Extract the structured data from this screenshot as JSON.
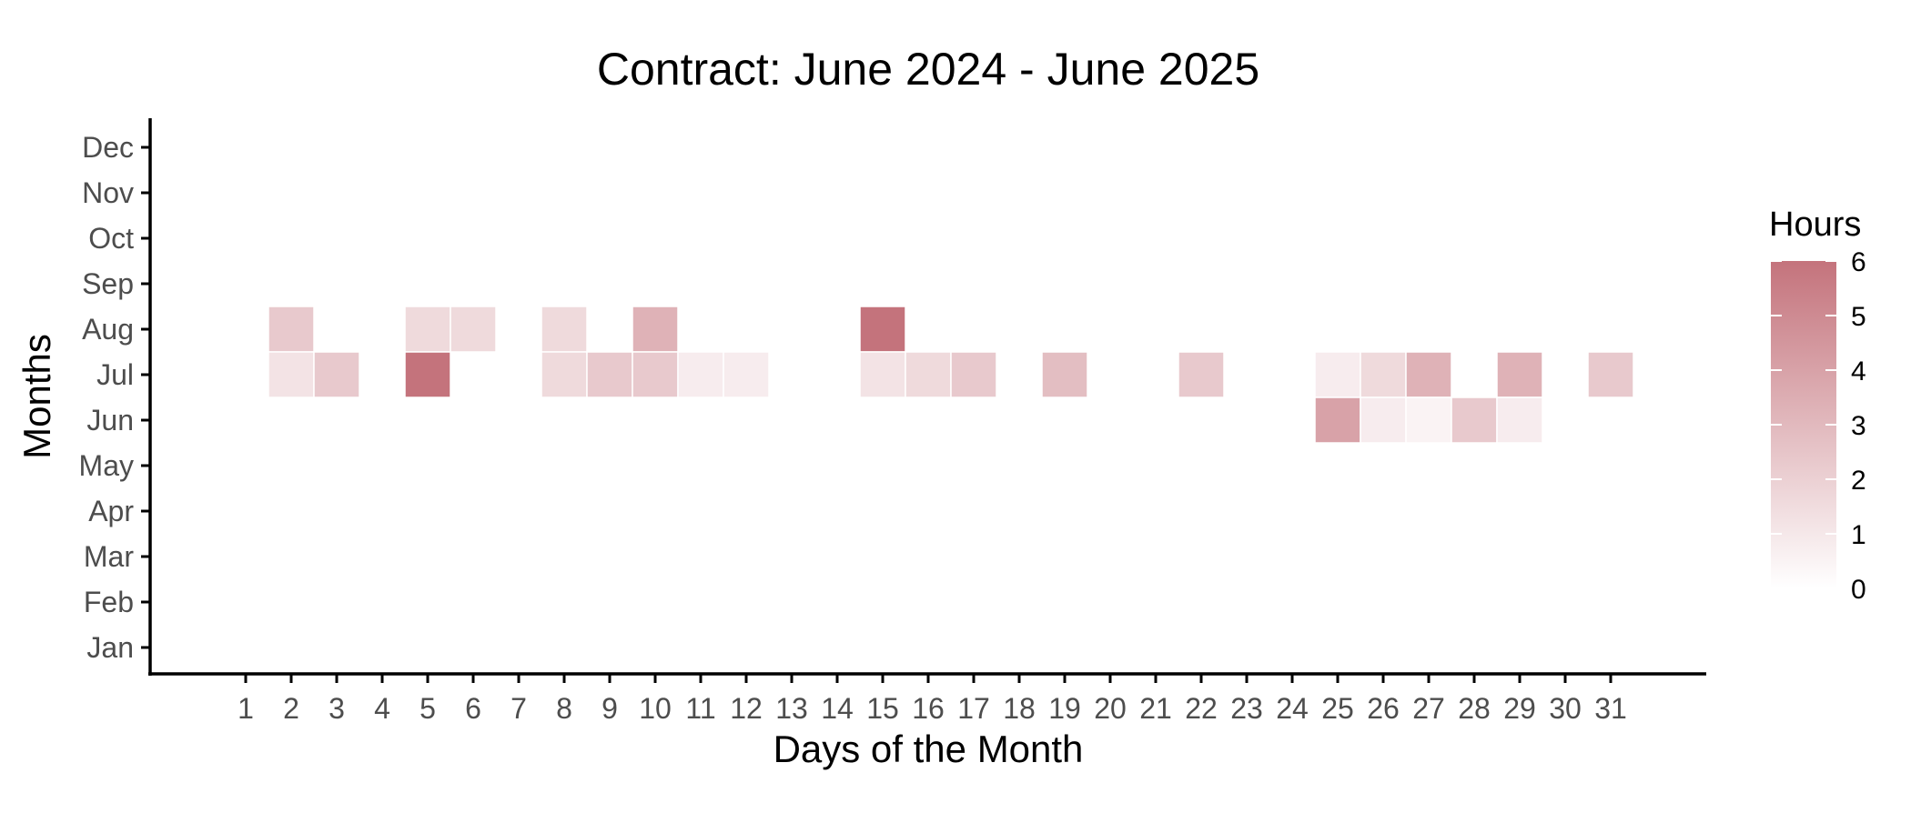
{
  "chart_data": {
    "type": "heatmap",
    "title": "Contract: June 2024 - June 2025",
    "xlabel": "Days of the Month",
    "ylabel": "Months",
    "x_categories": [
      "1",
      "2",
      "3",
      "4",
      "5",
      "6",
      "7",
      "8",
      "9",
      "10",
      "11",
      "12",
      "13",
      "14",
      "15",
      "16",
      "17",
      "18",
      "19",
      "20",
      "21",
      "22",
      "23",
      "24",
      "25",
      "26",
      "27",
      "28",
      "29",
      "30",
      "31"
    ],
    "y_categories": [
      "Jan",
      "Feb",
      "Mar",
      "Apr",
      "May",
      "Jun",
      "Jul",
      "Aug",
      "Sep",
      "Oct",
      "Nov",
      "Dec"
    ],
    "legend": {
      "title": "Hours",
      "placement": "right",
      "range": [
        0,
        6
      ],
      "ticks": [
        "0",
        "1",
        "2",
        "3",
        "4",
        "5",
        "6"
      ],
      "low_color": "#ffffff",
      "high_color": "#c4737c"
    },
    "cells": [
      {
        "month": "Aug",
        "day": "2",
        "hours": 2.3
      },
      {
        "month": "Aug",
        "day": "5",
        "hours": 1.6
      },
      {
        "month": "Aug",
        "day": "6",
        "hours": 1.6
      },
      {
        "month": "Aug",
        "day": "8",
        "hours": 1.6
      },
      {
        "month": "Aug",
        "day": "10",
        "hours": 3.3
      },
      {
        "month": "Aug",
        "day": "15",
        "hours": 6
      },
      {
        "month": "Jul",
        "day": "2",
        "hours": 1.2
      },
      {
        "month": "Jul",
        "day": "3",
        "hours": 2.3
      },
      {
        "month": "Jul",
        "day": "5",
        "hours": 6
      },
      {
        "month": "Jul",
        "day": "8",
        "hours": 1.6
      },
      {
        "month": "Jul",
        "day": "9",
        "hours": 2.3
      },
      {
        "month": "Jul",
        "day": "10",
        "hours": 2.3
      },
      {
        "month": "Jul",
        "day": "11",
        "hours": 0.8
      },
      {
        "month": "Jul",
        "day": "12",
        "hours": 0.8
      },
      {
        "month": "Jul",
        "day": "15",
        "hours": 1.2
      },
      {
        "month": "Jul",
        "day": "16",
        "hours": 1.6
      },
      {
        "month": "Jul",
        "day": "17",
        "hours": 2.3
      },
      {
        "month": "Jul",
        "day": "19",
        "hours": 2.8
      },
      {
        "month": "Jul",
        "day": "22",
        "hours": 2.3
      },
      {
        "month": "Jul",
        "day": "25",
        "hours": 0.8
      },
      {
        "month": "Jul",
        "day": "26",
        "hours": 1.6
      },
      {
        "month": "Jul",
        "day": "27",
        "hours": 3.3
      },
      {
        "month": "Jul",
        "day": "29",
        "hours": 3.3
      },
      {
        "month": "Jul",
        "day": "31",
        "hours": 2.3
      },
      {
        "month": "Jun",
        "day": "25",
        "hours": 4
      },
      {
        "month": "Jun",
        "day": "26",
        "hours": 0.8
      },
      {
        "month": "Jun",
        "day": "27",
        "hours": 0.5
      },
      {
        "month": "Jun",
        "day": "28",
        "hours": 2.3
      },
      {
        "month": "Jun",
        "day": "29",
        "hours": 0.8
      }
    ]
  }
}
